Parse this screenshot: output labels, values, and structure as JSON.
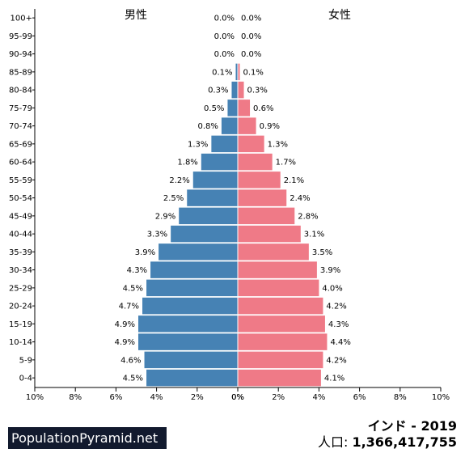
{
  "site": {
    "brand": "PopulationPyramid.net"
  },
  "summary": {
    "title": "インド - 2019",
    "population_label": "人口:",
    "population_value": "1,366,417,755"
  },
  "chart_data": {
    "type": "bar",
    "orientation": "horizontal-pyramid",
    "male_label": "男性",
    "female_label": "女性",
    "age_groups": [
      "100+",
      "95-99",
      "90-94",
      "85-89",
      "80-84",
      "75-79",
      "70-74",
      "65-69",
      "60-64",
      "55-59",
      "50-54",
      "45-49",
      "40-44",
      "35-39",
      "30-34",
      "25-29",
      "20-24",
      "15-19",
      "10-14",
      "5-9",
      "0-4"
    ],
    "series": [
      {
        "name": "男性",
        "color": "#4682b4",
        "values": [
          0.0,
          0.0,
          0.0,
          0.1,
          0.3,
          0.5,
          0.8,
          1.3,
          1.8,
          2.2,
          2.5,
          2.9,
          3.3,
          3.9,
          4.3,
          4.5,
          4.7,
          4.9,
          4.9,
          4.6,
          4.5
        ],
        "labels": [
          "0.0%",
          "0.0%",
          "0.0%",
          "0.1%",
          "0.3%",
          "0.5%",
          "0.8%",
          "1.3%",
          "1.8%",
          "2.2%",
          "2.5%",
          "2.9%",
          "3.3%",
          "3.9%",
          "4.3%",
          "4.5%",
          "4.7%",
          "4.9%",
          "4.9%",
          "4.6%",
          "4.5%"
        ]
      },
      {
        "name": "女性",
        "color": "#ef7a87",
        "values": [
          0.0,
          0.0,
          0.0,
          0.1,
          0.3,
          0.6,
          0.9,
          1.3,
          1.7,
          2.1,
          2.4,
          2.8,
          3.1,
          3.5,
          3.9,
          4.0,
          4.2,
          4.3,
          4.4,
          4.2,
          4.1
        ],
        "labels": [
          "0.0%",
          "0.0%",
          "0.0%",
          "0.1%",
          "0.3%",
          "0.6%",
          "0.9%",
          "1.3%",
          "1.7%",
          "2.1%",
          "2.4%",
          "2.8%",
          "3.1%",
          "3.5%",
          "3.9%",
          "4.0%",
          "4.2%",
          "4.3%",
          "4.4%",
          "4.2%",
          "4.1%"
        ]
      }
    ],
    "xlim": [
      0,
      10
    ],
    "x_ticks_left": [
      "10%",
      "8%",
      "6%",
      "4%",
      "2%",
      "0%"
    ],
    "x_ticks_right": [
      "0%",
      "2%",
      "4%",
      "6%",
      "8%",
      "10%"
    ],
    "grid": false
  }
}
